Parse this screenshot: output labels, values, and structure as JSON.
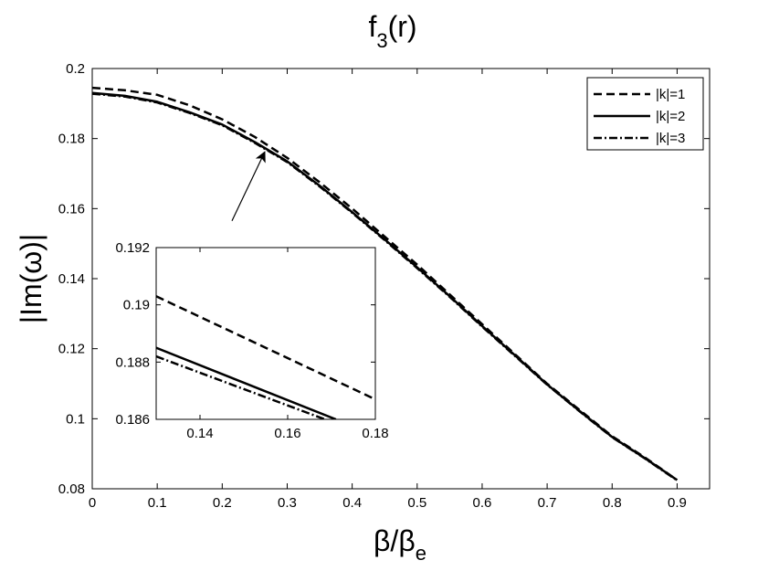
{
  "chart_data": {
    "type": "line",
    "title_base": "f",
    "title_sub": "3",
    "title_suffix": "(r)",
    "xlabel_base": "β/β",
    "xlabel_sub": "e",
    "ylabel": "|Im(ω)|",
    "xlim": [
      0,
      0.95
    ],
    "ylim": [
      0.08,
      0.2
    ],
    "xticks": [
      0,
      0.1,
      0.2,
      0.3,
      0.4,
      0.5,
      0.6,
      0.7,
      0.8,
      0.9
    ],
    "xtick_labels": [
      "0",
      "0.1",
      "0.2",
      "0.3",
      "0.4",
      "0.5",
      "0.6",
      "0.7",
      "0.8",
      "0.9"
    ],
    "yticks": [
      0.08,
      0.1,
      0.12,
      0.14,
      0.16,
      0.18,
      0.2
    ],
    "ytick_labels": [
      "0.08",
      "0.1",
      "0.12",
      "0.14",
      "0.16",
      "0.18",
      "0.2"
    ],
    "grid": false,
    "legend_position": "top-right",
    "series": [
      {
        "name": "|k|=1",
        "style": "dashed",
        "x": [
          0,
          0.05,
          0.1,
          0.15,
          0.2,
          0.25,
          0.3,
          0.35,
          0.4,
          0.45,
          0.5,
          0.55,
          0.6,
          0.65,
          0.7,
          0.75,
          0.8,
          0.85,
          0.9
        ],
        "y": [
          0.1945,
          0.1938,
          0.1925,
          0.1895,
          0.1855,
          0.1805,
          0.1745,
          0.1675,
          0.16,
          0.152,
          0.144,
          0.1355,
          0.127,
          0.1185,
          0.11,
          0.1025,
          0.095,
          0.089,
          0.0825
        ]
      },
      {
        "name": "|k|=2",
        "style": "solid",
        "x": [
          0,
          0.05,
          0.1,
          0.15,
          0.2,
          0.25,
          0.3,
          0.35,
          0.4,
          0.45,
          0.5,
          0.55,
          0.6,
          0.65,
          0.7,
          0.75,
          0.8,
          0.85,
          0.9
        ],
        "y": [
          0.193,
          0.1922,
          0.1905,
          0.1875,
          0.184,
          0.179,
          0.1735,
          0.1665,
          0.159,
          0.1512,
          0.1432,
          0.135,
          0.1265,
          0.1182,
          0.1098,
          0.1022,
          0.0948,
          0.0888,
          0.0825
        ]
      },
      {
        "name": "|k|=3",
        "style": "dashdot",
        "x": [
          0,
          0.05,
          0.1,
          0.15,
          0.2,
          0.25,
          0.3,
          0.35,
          0.4,
          0.45,
          0.5,
          0.55,
          0.6,
          0.65,
          0.7,
          0.75,
          0.8,
          0.85,
          0.9
        ],
        "y": [
          0.1928,
          0.192,
          0.1903,
          0.1873,
          0.1838,
          0.1788,
          0.1733,
          0.1663,
          0.1588,
          0.151,
          0.143,
          0.1348,
          0.1263,
          0.118,
          0.1097,
          0.1021,
          0.0947,
          0.0887,
          0.0824
        ]
      }
    ],
    "inset": {
      "xlim": [
        0.13,
        0.18
      ],
      "ylim": [
        0.186,
        0.192
      ],
      "xticks": [
        0.14,
        0.16,
        0.18
      ],
      "xtick_labels": [
        "0.14",
        "0.16",
        "0.18"
      ],
      "yticks": [
        0.186,
        0.188,
        0.19,
        0.192
      ],
      "ytick_labels": [
        "0.186",
        "0.188",
        "0.19",
        "0.192"
      ],
      "series": [
        {
          "name": "|k|=1",
          "style": "dashed",
          "x": [
            0.13,
            0.18
          ],
          "y": [
            0.1903,
            0.1867
          ]
        },
        {
          "name": "|k|=2",
          "style": "solid",
          "x": [
            0.13,
            0.171
          ],
          "y": [
            0.1885,
            0.186
          ]
        },
        {
          "name": "|k|=3",
          "style": "dashdot",
          "x": [
            0.13,
            0.1685
          ],
          "y": [
            0.1882,
            0.186
          ]
        }
      ]
    },
    "annotation_arrow": {
      "from": [
        0.215,
        0.1565
      ],
      "to": [
        0.265,
        0.176
      ]
    }
  }
}
